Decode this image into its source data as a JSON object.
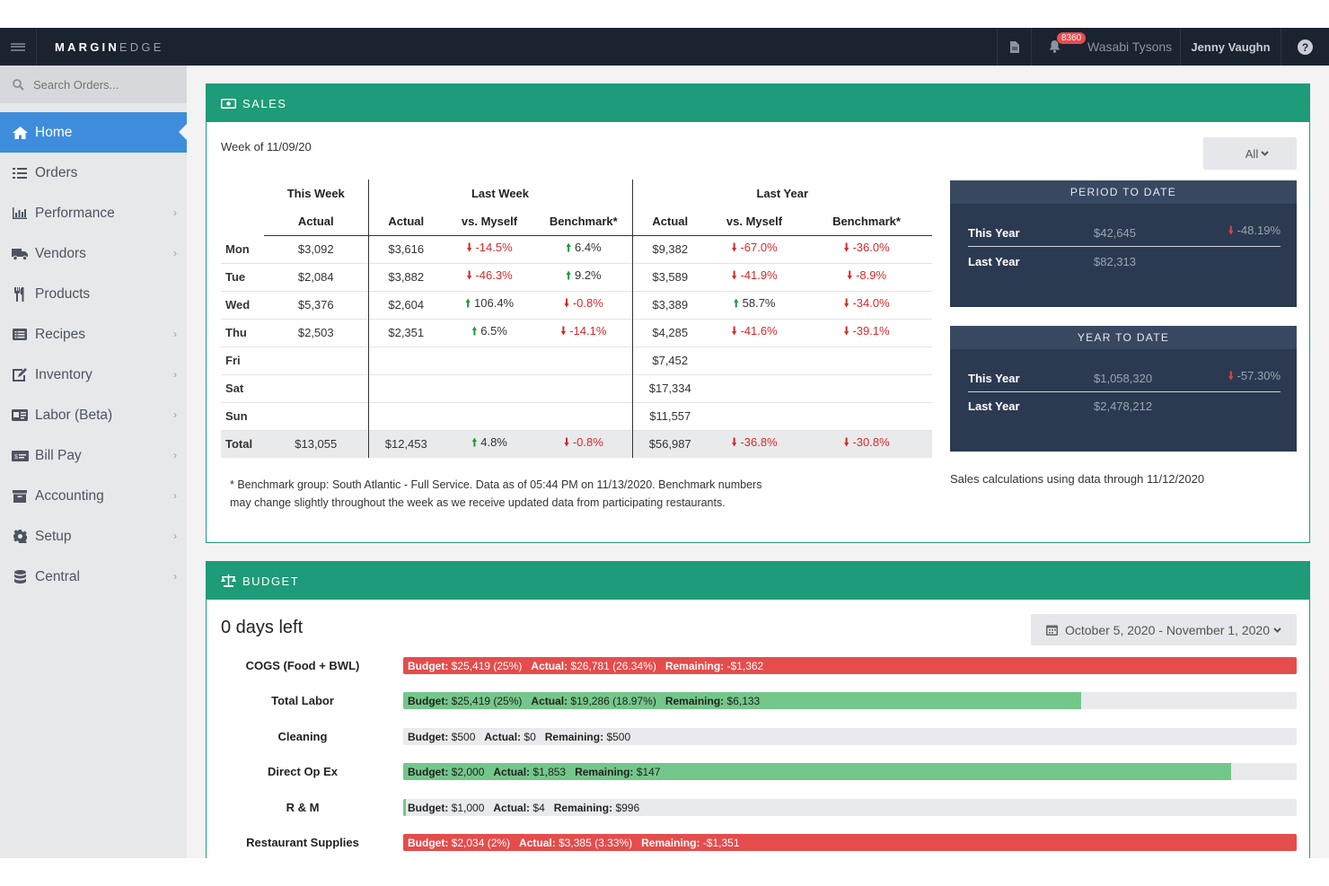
{
  "topbar": {
    "logo_bold": "MARGIN",
    "logo_light": "EDGE",
    "notifications_count": "8360",
    "location": "Wasabi Tysons",
    "user": "Jenny Vaughn"
  },
  "sidebar": {
    "search_placeholder": "Search Orders...",
    "items": [
      {
        "label": "Home",
        "icon": "home-icon",
        "active": true
      },
      {
        "label": "Orders",
        "icon": "list-icon"
      },
      {
        "label": "Performance",
        "icon": "bar-chart-icon"
      },
      {
        "label": "Vendors",
        "icon": "truck-icon"
      },
      {
        "label": "Products",
        "icon": "utensils-icon"
      },
      {
        "label": "Recipes",
        "icon": "list-alt-icon"
      },
      {
        "label": "Inventory",
        "icon": "edit-icon"
      },
      {
        "label": "Labor (Beta)",
        "icon": "id-card-icon"
      },
      {
        "label": "Bill Pay",
        "icon": "money-icon"
      },
      {
        "label": "Accounting",
        "icon": "archive-icon"
      },
      {
        "label": "Setup",
        "icon": "gear-icon"
      },
      {
        "label": "Central",
        "icon": "database-icon"
      }
    ]
  },
  "sales": {
    "title": "SALES",
    "week": "Week of 11/09/20",
    "filter": "All",
    "groups": {
      "this_week": "This Week",
      "last_week": "Last Week",
      "last_year": "Last Year"
    },
    "columns": {
      "actual": "Actual",
      "vs_myself": "vs. Myself",
      "benchmark": "Benchmark*"
    },
    "rows": [
      {
        "day": "Mon",
        "tw": "$3,092",
        "lw": "$3,616",
        "lw_vs": "-14.5%",
        "lw_vs_dir": "down",
        "lw_bm": "6.4%",
        "lw_bm_dir": "up",
        "ly": "$9,382",
        "ly_vs": "-67.0%",
        "ly_vs_dir": "down",
        "ly_bm": "-36.0%",
        "ly_bm_dir": "down"
      },
      {
        "day": "Tue",
        "tw": "$2,084",
        "lw": "$3,882",
        "lw_vs": "-46.3%",
        "lw_vs_dir": "down",
        "lw_bm": "9.2%",
        "lw_bm_dir": "up",
        "ly": "$3,589",
        "ly_vs": "-41.9%",
        "ly_vs_dir": "down",
        "ly_bm": "-8.9%",
        "ly_bm_dir": "down"
      },
      {
        "day": "Wed",
        "tw": "$5,376",
        "lw": "$2,604",
        "lw_vs": "106.4%",
        "lw_vs_dir": "up",
        "lw_bm": "-0.8%",
        "lw_bm_dir": "down",
        "ly": "$3,389",
        "ly_vs": "58.7%",
        "ly_vs_dir": "up",
        "ly_bm": "-34.0%",
        "ly_bm_dir": "down"
      },
      {
        "day": "Thu",
        "tw": "$2,503",
        "lw": "$2,351",
        "lw_vs": "6.5%",
        "lw_vs_dir": "up",
        "lw_bm": "-14.1%",
        "lw_bm_dir": "down",
        "ly": "$4,285",
        "ly_vs": "-41.6%",
        "ly_vs_dir": "down",
        "ly_bm": "-39.1%",
        "ly_bm_dir": "down"
      },
      {
        "day": "Fri",
        "tw": "",
        "lw": "",
        "lw_vs": "",
        "lw_vs_dir": "",
        "lw_bm": "",
        "lw_bm_dir": "",
        "ly": "$7,452",
        "ly_vs": "",
        "ly_vs_dir": "",
        "ly_bm": "",
        "ly_bm_dir": ""
      },
      {
        "day": "Sat",
        "tw": "",
        "lw": "",
        "lw_vs": "",
        "lw_vs_dir": "",
        "lw_bm": "",
        "lw_bm_dir": "",
        "ly": "$17,334",
        "ly_vs": "",
        "ly_vs_dir": "",
        "ly_bm": "",
        "ly_bm_dir": ""
      },
      {
        "day": "Sun",
        "tw": "",
        "lw": "",
        "lw_vs": "",
        "lw_vs_dir": "",
        "lw_bm": "",
        "lw_bm_dir": "",
        "ly": "$11,557",
        "ly_vs": "",
        "ly_vs_dir": "",
        "ly_bm": "",
        "ly_bm_dir": ""
      },
      {
        "day": "Total",
        "tw": "$13,055",
        "lw": "$12,453",
        "lw_vs": "4.8%",
        "lw_vs_dir": "up",
        "lw_bm": "-0.8%",
        "lw_bm_dir": "down",
        "ly": "$56,987",
        "ly_vs": "-36.8%",
        "ly_vs_dir": "down",
        "ly_bm": "-30.8%",
        "ly_bm_dir": "down"
      }
    ],
    "note": "* Benchmark group: South Atlantic - Full Service. Data as of 05:44 PM on 11/13/2020. Benchmark numbers may change slightly throughout the week as we receive updated data from participating restaurants.",
    "period_to_date": {
      "title": "PERIOD TO DATE",
      "this_year_label": "This Year",
      "this_year": "$42,645",
      "this_year_pct": "-48.19%",
      "last_year_label": "Last Year",
      "last_year": "$82,313"
    },
    "year_to_date": {
      "title": "YEAR TO DATE",
      "this_year_label": "This Year",
      "this_year": "$1,058,320",
      "this_year_pct": "-57.30%",
      "last_year_label": "Last Year",
      "last_year": "$2,478,212"
    },
    "calc_note": "Sales calculations using data through 11/12/2020"
  },
  "budget": {
    "title": "BUDGET",
    "days_left": "0 days left",
    "date_range": "October 5, 2020 - November 1, 2020",
    "budget_label": "Budget:",
    "actual_label": "Actual:",
    "remaining_label": "Remaining:",
    "rows": [
      {
        "label": "COGS (Food + BWL)",
        "budget": "$25,419 (25%)",
        "actual": "$26,781 (26.34%)",
        "remaining": "-$1,362",
        "fill": 1.0,
        "status": "over"
      },
      {
        "label": "Total Labor",
        "budget": "$25,419 (25%)",
        "actual": "$19,286 (18.97%)",
        "remaining": "$6,133",
        "fill": 0.759,
        "status": "under"
      },
      {
        "label": "Cleaning",
        "budget": "$500",
        "actual": "$0",
        "remaining": "$500",
        "fill": 0.0,
        "status": "under"
      },
      {
        "label": "Direct Op Ex",
        "budget": "$2,000",
        "actual": "$1,853",
        "remaining": "$147",
        "fill": 0.927,
        "status": "under"
      },
      {
        "label": "R & M",
        "budget": "$1,000",
        "actual": "$4",
        "remaining": "$996",
        "fill": 0.004,
        "status": "under"
      },
      {
        "label": "Restaurant Supplies",
        "budget": "$2,034 (2%)",
        "actual": "$3,385 (3.33%)",
        "remaining": "-$1,351",
        "fill": 1.0,
        "status": "over"
      }
    ]
  },
  "colors": {
    "accent": "#1e9b78",
    "nav_active": "#3e8ddc",
    "topbar": "#1b2230",
    "over": "#e54c4c",
    "under": "#74c78a"
  }
}
